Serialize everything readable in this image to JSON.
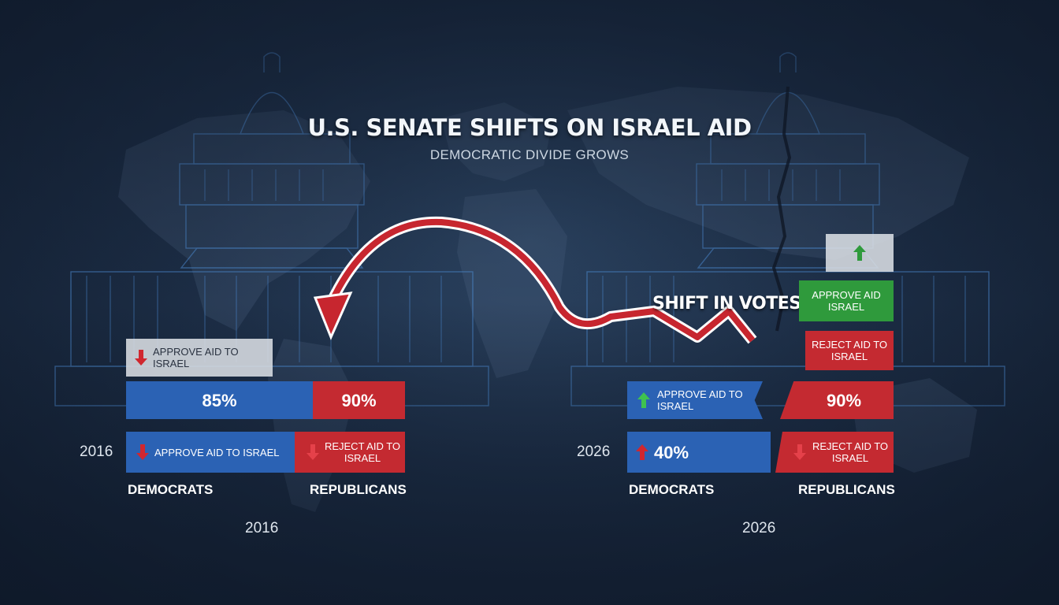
{
  "title": "U.S. SENATE SHIFTS ON ISRAEL AID",
  "subtitle": "DEMOCRATIC DIVIDE GROWS",
  "shift_label": "SHIFT IN VOTES",
  "colors": {
    "democrat_blue": "#2b62b4",
    "republican_red": "#c42a31",
    "approve_green": "#2f9a3c",
    "background": "#1c2d45"
  },
  "left_panel": {
    "year_side": "2016",
    "year_bottom": "2016",
    "header_box": {
      "text": "APPROVE AID TO ISRAEL",
      "icon": "arrow-down-icon"
    },
    "bar": {
      "democrats_pct": "85%",
      "republicans_pct": "90%"
    },
    "democrats_box": {
      "text": "APPROVE AID TO ISRAEL",
      "icon": "arrow-down-icon"
    },
    "republicans_box": {
      "text": "REJECT AID TO ISRAEL",
      "icon": "arrow-down-icon"
    },
    "democrats_label": "DEMOCRATS",
    "republicans_label": "REPUBLICANS"
  },
  "right_panel": {
    "year_side": "2026",
    "year_bottom": "2026",
    "top_box": {
      "icon": "arrow-up-icon"
    },
    "approve_box": {
      "text": "APPROVE AID ISRAEL"
    },
    "reject_box": {
      "text": "REJECT AID TO ISRAEL"
    },
    "democrats_approve_box": {
      "text": "APPROVE AID TO ISRAEL",
      "icon": "arrow-up-icon"
    },
    "republicans_pct": "90%",
    "democrats_pct": "40%",
    "democrats_pct_icon": "arrow-up-icon",
    "republicans_reject_box": {
      "text": "REJECT AID TO ISRAEL",
      "icon": "arrow-down-icon"
    },
    "democrats_label": "DEMOCRATS",
    "republicans_label": "REPUBLICANS"
  }
}
